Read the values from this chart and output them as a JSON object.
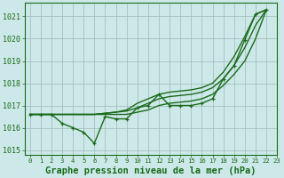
{
  "title": "Graphe pression niveau de la mer (hPa)",
  "bg_color": "#cce8e8",
  "grid_color": "#a0b8b8",
  "line_color": "#1a6b1a",
  "xlim": [
    -0.5,
    23
  ],
  "ylim": [
    1014.8,
    1021.6
  ],
  "yticks": [
    1015,
    1016,
    1017,
    1018,
    1019,
    1020,
    1021
  ],
  "xticks": [
    0,
    1,
    2,
    3,
    4,
    5,
    6,
    7,
    8,
    9,
    10,
    11,
    12,
    13,
    14,
    15,
    16,
    17,
    18,
    19,
    20,
    21,
    22,
    23
  ],
  "series_jagged": [
    1016.6,
    1016.6,
    1016.6,
    1016.2,
    1016.0,
    1015.8,
    1015.3,
    1016.5,
    1016.4,
    1016.4,
    1016.9,
    1017.0,
    1017.5,
    1017.0,
    1017.0,
    1017.0,
    1017.1,
    1017.3,
    1018.2,
    1018.8,
    1019.95,
    1021.1,
    1021.3
  ],
  "series_smooth1": [
    1016.6,
    1016.6,
    1016.6,
    1016.6,
    1016.6,
    1016.6,
    1016.6,
    1016.65,
    1016.7,
    1016.8,
    1017.1,
    1017.3,
    1017.5,
    1017.6,
    1017.65,
    1017.7,
    1017.8,
    1018.0,
    1018.5,
    1019.2,
    1020.1,
    1021.1,
    1021.3
  ],
  "series_smooth2": [
    1016.6,
    1016.6,
    1016.6,
    1016.6,
    1016.6,
    1016.6,
    1016.6,
    1016.65,
    1016.7,
    1016.75,
    1016.9,
    1017.1,
    1017.3,
    1017.4,
    1017.45,
    1017.5,
    1017.6,
    1017.8,
    1018.2,
    1018.8,
    1019.6,
    1020.6,
    1021.3
  ],
  "series_smooth3": [
    1016.6,
    1016.6,
    1016.6,
    1016.6,
    1016.6,
    1016.6,
    1016.6,
    1016.6,
    1016.6,
    1016.6,
    1016.7,
    1016.8,
    1017.0,
    1017.1,
    1017.15,
    1017.2,
    1017.3,
    1017.5,
    1017.9,
    1018.4,
    1019.0,
    1020.0,
    1021.3
  ],
  "linewidth": 1.0,
  "marker": "+",
  "marker_size": 3.5,
  "markeredgewidth": 0.9
}
